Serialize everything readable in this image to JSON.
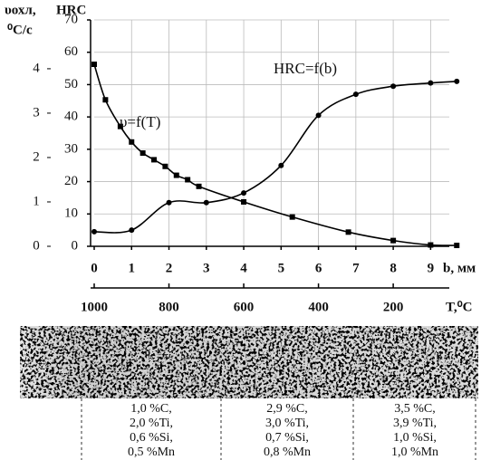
{
  "chart_data": {
    "type": "line",
    "y_label": "HRC",
    "y2_label": [
      "υохл,",
      "⁰С/с"
    ],
    "x_label": "b, мм",
    "x2_label": "T,⁰C",
    "xlim": [
      0,
      9.5
    ],
    "xticks": [
      0,
      1,
      2,
      3,
      4,
      5,
      6,
      7,
      8,
      9
    ],
    "x2lim": [
      1000,
      50
    ],
    "x2ticks": [
      1000,
      800,
      600,
      400,
      200
    ],
    "ylim": [
      0,
      70
    ],
    "yticks": [
      0,
      10,
      20,
      30,
      40,
      50,
      60,
      70
    ],
    "y2lim": [
      0,
      5.1
    ],
    "y2ticks": [
      0,
      1,
      2,
      3,
      4
    ],
    "grid": true,
    "series": [
      {
        "name": "HRC=f(b)",
        "color": "#000",
        "marker": "circle",
        "x": [
          0,
          1,
          2,
          3,
          4,
          5,
          6,
          7,
          8,
          9,
          9.7
        ],
        "values": [
          4.5,
          5,
          13.5,
          13.5,
          16.5,
          25,
          40.5,
          47,
          49.5,
          50.5,
          51
        ]
      },
      {
        "name": "υ=f(T)",
        "color": "#000",
        "marker": "square",
        "axis": "y2",
        "x": [
          0,
          0.3,
          0.7,
          1,
          1.3,
          1.6,
          1.9,
          2.2,
          2.5,
          2.8,
          4,
          5.3,
          6.8,
          8,
          9,
          9.7
        ],
        "values": [
          4.1,
          3.3,
          2.7,
          2.35,
          2.1,
          1.95,
          1.8,
          1.6,
          1.5,
          1.35,
          1.0,
          0.66,
          0.32,
          0.13,
          0.03,
          0.02
        ]
      }
    ]
  },
  "micrograph": {
    "compositions": [
      [
        "1,0 %C,",
        "2,0 %Ti,",
        "0,6 %Si,",
        "0,5 %Mn"
      ],
      [
        "2,9 %C,",
        "3,0 %Ti,",
        "0,7 %Si,",
        "0,8 %Mn"
      ],
      [
        "3,5 %C,",
        "3,9 %Ti,",
        "1,0 %Si,",
        "1,0 %Mn"
      ]
    ]
  }
}
